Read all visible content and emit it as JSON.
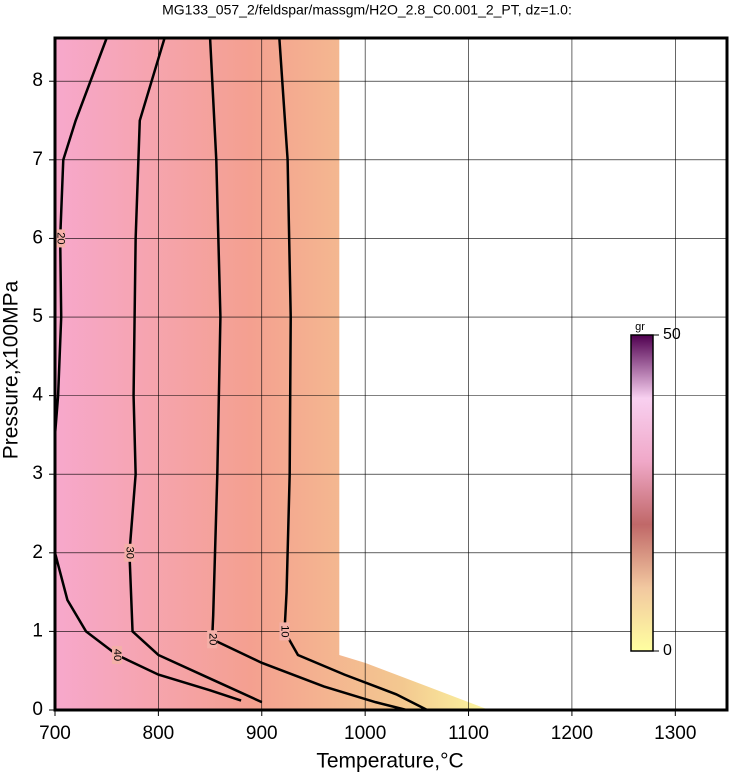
{
  "chart_data": {
    "type": "contour",
    "title": "MG133_057_2/feldspar/massgm/H2O_2.8_C0.001_2_PT, dz=1.0:",
    "x_label": "Temperature,°C",
    "y_label": "Pressure,x100MPa",
    "xlim": [
      700,
      1350
    ],
    "xticks": [
      700,
      800,
      900,
      1000,
      1100,
      1200,
      1300
    ],
    "ylim": [
      0,
      8.55
    ],
    "yticks": [
      0,
      1,
      2,
      3,
      4,
      5,
      6,
      7,
      8
    ],
    "grid": true,
    "data_region": {
      "x": [
        700,
        975,
        975,
        1000,
        1060,
        1120,
        700
      ],
      "y": [
        8.55,
        8.55,
        0.7,
        0.6,
        0.3,
        0,
        0
      ]
    },
    "series": [
      {
        "level": 10,
        "x": [
          917,
          925,
          928,
          927,
          924,
          922,
          935,
          980,
          1030,
          1060
        ],
        "y": [
          8.55,
          7,
          5,
          3,
          1.5,
          1,
          0.7,
          0.45,
          0.2,
          0
        ]
      },
      {
        "level": 20,
        "x": [
          850,
          856,
          860,
          857,
          853,
          852,
          900,
          960,
          1010,
          1040
        ],
        "y": [
          8.55,
          7,
          5,
          3,
          1.2,
          0.9,
          0.6,
          0.3,
          0.1,
          0
        ]
      },
      {
        "level": 30,
        "x": [
          806,
          782,
          778,
          776,
          778,
          772,
          775,
          800,
          850,
          900
        ],
        "y": [
          8.55,
          7.5,
          6,
          4,
          3,
          2,
          1,
          0.7,
          0.4,
          0.1
        ]
      },
      {
        "level": 40,
        "x": [
          700,
          712,
          730,
          760,
          800,
          850,
          880
        ],
        "y": [
          2.0,
          1.4,
          1.0,
          0.7,
          0.45,
          0.25,
          0.12
        ]
      },
      {
        "level": 20,
        "x": [
          750,
          720,
          708,
          705,
          706,
          703,
          700
        ],
        "y": [
          8.55,
          7.5,
          7,
          6,
          5,
          4,
          3.5
        ]
      }
    ],
    "colorbar": {
      "label": "gr",
      "clim": [
        0,
        50
      ],
      "cticks": [
        0,
        50
      ],
      "colormap": [
        "#ffffa0",
        "#f2c8a0",
        "#c06868",
        "#f0a8c8",
        "#f8d0f0",
        "#500050"
      ]
    }
  }
}
